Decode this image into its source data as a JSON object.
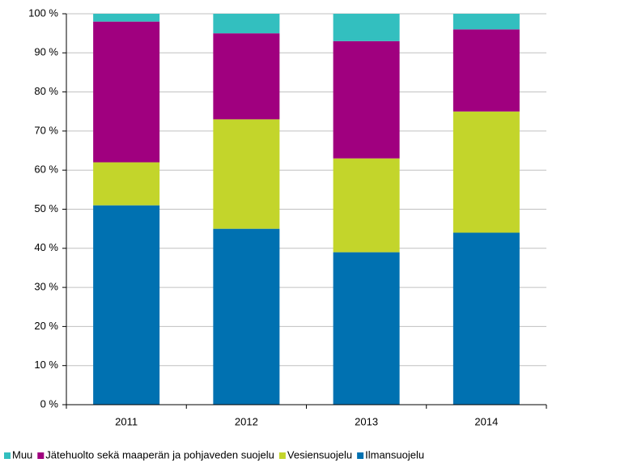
{
  "chart_data": {
    "type": "stacked_bar",
    "categories": [
      "2011",
      "2012",
      "2013",
      "2014"
    ],
    "series": [
      {
        "name": "Muu",
        "color": "#33bfbf",
        "values": [
          2,
          5,
          7,
          4
        ]
      },
      {
        "name": "Jätehuolto sekä maaperän ja pohjaveden suojelu",
        "color": "#a0007f",
        "values": [
          36,
          22,
          30,
          21
        ]
      },
      {
        "name": "Vesiensuojelu",
        "color": "#c3d52b",
        "values": [
          11,
          28,
          24,
          31
        ]
      },
      {
        "name": "Ilmansuojelu",
        "color": "#0071b1",
        "values": [
          51,
          45,
          39,
          44
        ]
      }
    ],
    "ylim": [
      0,
      100
    ],
    "yticks": [
      {
        "value": 0,
        "label": "0 %"
      },
      {
        "value": 10,
        "label": "10 %"
      },
      {
        "value": 20,
        "label": "20 %"
      },
      {
        "value": 30,
        "label": "30 %"
      },
      {
        "value": 40,
        "label": "40 %"
      },
      {
        "value": 50,
        "label": "50 %"
      },
      {
        "value": 60,
        "label": "60 %"
      },
      {
        "value": 70,
        "label": "70 %"
      },
      {
        "value": 80,
        "label": "80 %"
      },
      {
        "value": 90,
        "label": "90 %"
      },
      {
        "value": 100,
        "label": "100 %"
      }
    ],
    "grid": true,
    "legend": "bottom"
  }
}
